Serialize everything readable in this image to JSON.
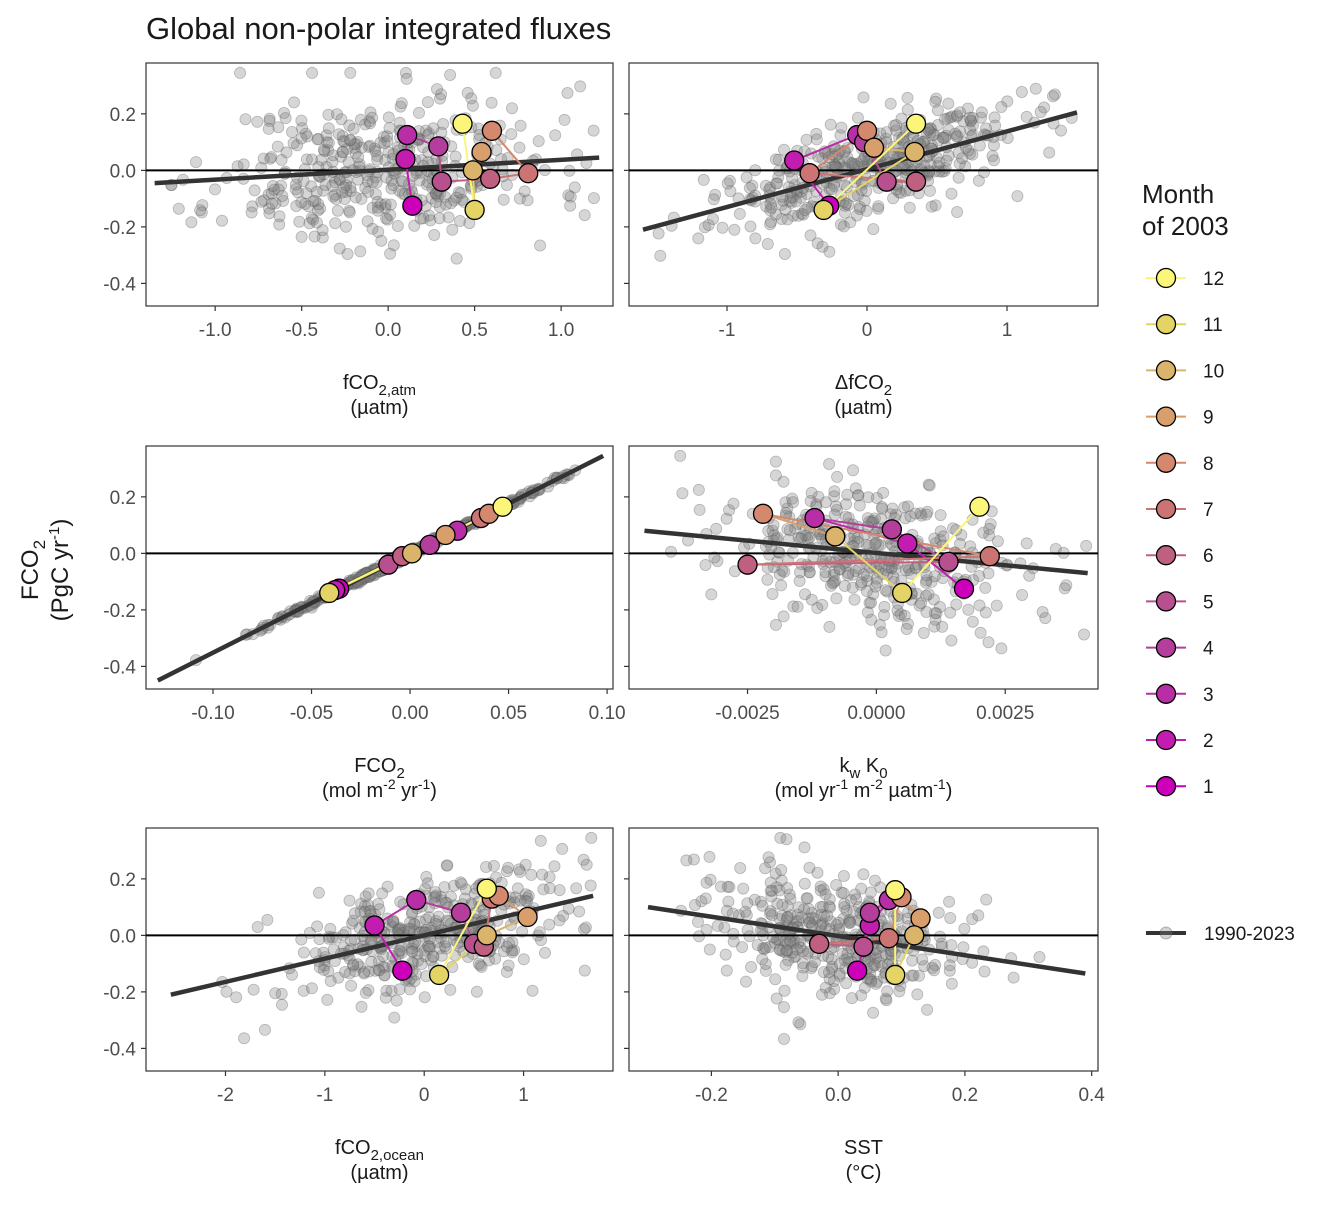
{
  "title": "Global non-polar integrated fluxes",
  "y_axis": {
    "label": "FCO",
    "label_sub": "2",
    "unit_pre": "(PgC yr",
    "unit_sup": "-1",
    "unit_post": ")"
  },
  "legend": {
    "title_line1": "Month",
    "title_line2": "of 2003",
    "months": [
      "12",
      "11",
      "10",
      "9",
      "8",
      "7",
      "6",
      "5",
      "4",
      "3",
      "2",
      "1"
    ],
    "trend_label": "1990-2023"
  },
  "colors": {
    "month_colors": [
      "#cc00bb",
      "#c21cb0",
      "#b82ea6",
      "#b33e9b",
      "#b84f8e",
      "#c06080",
      "#cc7474",
      "#d4886e",
      "#d89e6c",
      "#d9b46a",
      "#e4d466",
      "#fbf57a"
    ],
    "trend": "#333333",
    "points": "#808080"
  },
  "chart_data": [
    {
      "type": "scatter",
      "name": "fco2_atm",
      "xlabel": "fCO",
      "xlabel_sub": "2,atm",
      "xunit": "(µatm)",
      "xlim": [
        -1.4,
        1.3
      ],
      "xticks": [
        -1.0,
        -0.5,
        0.0,
        0.5,
        1.0
      ],
      "xtick_labels": [
        "-1.0",
        "-0.5",
        "0.0",
        "0.5",
        "1.0"
      ],
      "ylim": [
        -0.48,
        0.38
      ],
      "yticks": [
        -0.4,
        -0.2,
        0.0,
        0.2
      ],
      "ytick_labels": [
        "-0.4",
        "-0.2",
        "0.0",
        "0.2"
      ],
      "ref_line_y": 0,
      "trend": {
        "x": [
          -1.35,
          1.22
        ],
        "y": [
          -0.045,
          0.045
        ]
      },
      "months": [
        {
          "month": "1",
          "x": 0.14,
          "y": -0.125
        },
        {
          "month": "2",
          "x": 0.1,
          "y": 0.04
        },
        {
          "month": "3",
          "x": 0.11,
          "y": 0.125
        },
        {
          "month": "4",
          "x": 0.29,
          "y": 0.085
        },
        {
          "month": "5",
          "x": 0.31,
          "y": -0.04
        },
        {
          "month": "6",
          "x": 0.59,
          "y": -0.03
        },
        {
          "month": "7",
          "x": 0.81,
          "y": -0.01
        },
        {
          "month": "8",
          "x": 0.6,
          "y": 0.14
        },
        {
          "month": "9",
          "x": 0.54,
          "y": 0.065
        },
        {
          "month": "10",
          "x": 0.49,
          "y": 0.0
        },
        {
          "month": "11",
          "x": 0.5,
          "y": -0.14
        },
        {
          "month": "12",
          "x": 0.43,
          "y": 0.165
        }
      ],
      "scatter": {
        "n": 420,
        "seed": 11,
        "xmean": 0.0,
        "xsd": 0.48,
        "ymean": 0.0,
        "ysd": 0.13,
        "slope": 0.035,
        "xmin": -1.35,
        "xmax": 1.22
      }
    },
    {
      "type": "scatter",
      "name": "delta_fco2",
      "xlabel": "ΔfCO",
      "xlabel_sub": "2",
      "xunit": "(µatm)",
      "xlim": [
        -1.7,
        1.65
      ],
      "xticks": [
        -1,
        0,
        1
      ],
      "xtick_labels": [
        "-1",
        "0",
        "1"
      ],
      "ylim": [
        -0.48,
        0.38
      ],
      "yticks": [
        -0.4,
        -0.2,
        0.0,
        0.2
      ],
      "ytick_labels": [
        "-0.4",
        "-0.2",
        "0.0",
        "0.2"
      ],
      "ref_line_y": 0,
      "trend": {
        "x": [
          -1.6,
          1.5
        ],
        "y": [
          -0.21,
          0.205
        ]
      },
      "months": [
        {
          "month": "1",
          "x": -0.27,
          "y": -0.125
        },
        {
          "month": "2",
          "x": -0.52,
          "y": 0.035
        },
        {
          "month": "3",
          "x": -0.07,
          "y": 0.125
        },
        {
          "month": "4",
          "x": -0.02,
          "y": 0.1
        },
        {
          "month": "5",
          "x": 0.14,
          "y": -0.04
        },
        {
          "month": "6",
          "x": 0.35,
          "y": -0.04
        },
        {
          "month": "7",
          "x": -0.41,
          "y": -0.01
        },
        {
          "month": "8",
          "x": 0.0,
          "y": 0.14
        },
        {
          "month": "9",
          "x": 0.05,
          "y": 0.08
        },
        {
          "month": "10",
          "x": 0.34,
          "y": 0.065
        },
        {
          "month": "11",
          "x": -0.31,
          "y": -0.14
        },
        {
          "month": "12",
          "x": 0.35,
          "y": 0.165
        }
      ],
      "scatter": {
        "n": 420,
        "seed": 23,
        "xmean": 0.0,
        "xsd": 0.55,
        "ymean": 0.0,
        "ysd": 0.085,
        "slope": 0.135,
        "xmin": -1.6,
        "xmax": 1.5
      }
    },
    {
      "type": "scatter",
      "name": "fco2_flux",
      "xlabel": "FCO",
      "xlabel_sub": "2",
      "xunit_pre": "(mol m",
      "xunit_sup1": "-2",
      "xunit_mid": " yr",
      "xunit_sup2": "-1",
      "xunit_post": ")",
      "xlim": [
        -0.134,
        0.103
      ],
      "xticks": [
        -0.1,
        -0.05,
        0.0,
        0.05,
        0.1
      ],
      "xtick_labels": [
        "-0.10",
        "-0.05",
        "0.00",
        "0.05",
        "0.10"
      ],
      "ylim": [
        -0.48,
        0.38
      ],
      "yticks": [
        -0.4,
        -0.2,
        0.0,
        0.2
      ],
      "ytick_labels": [
        "-0.4",
        "-0.2",
        "0.0",
        "0.2"
      ],
      "ref_line_y": 0,
      "trend": {
        "x": [
          -0.128,
          0.098
        ],
        "y": [
          -0.45,
          0.345
        ]
      },
      "months": [
        {
          "month": "1",
          "x": -0.036,
          "y": -0.125
        },
        {
          "month": "2",
          "x": -0.038,
          "y": -0.13
        },
        {
          "month": "3",
          "x": 0.024,
          "y": 0.08
        },
        {
          "month": "4",
          "x": 0.01,
          "y": 0.03
        },
        {
          "month": "5",
          "x": -0.011,
          "y": -0.04
        },
        {
          "month": "6",
          "x": -0.004,
          "y": -0.01
        },
        {
          "month": "7",
          "x": 0.036,
          "y": 0.125
        },
        {
          "month": "8",
          "x": 0.04,
          "y": 0.14
        },
        {
          "month": "9",
          "x": 0.018,
          "y": 0.065
        },
        {
          "month": "10",
          "x": 0.001,
          "y": 0.0
        },
        {
          "month": "11",
          "x": -0.041,
          "y": -0.14
        },
        {
          "month": "12",
          "x": 0.047,
          "y": 0.165
        }
      ],
      "scatter": {
        "n": 420,
        "seed": 37,
        "xmean": 0.0,
        "xsd": 0.035,
        "ymean": 0.0,
        "ysd": 0.006,
        "slope": 3.5,
        "xmin": -0.128,
        "xmax": 0.098,
        "linear": true
      }
    },
    {
      "type": "scatter",
      "name": "kw_k0",
      "xlabel": "k",
      "xlabel_sub": "w",
      "xlabel2": " K",
      "xlabel2_sub": "0",
      "xunit_pre": "(mol yr",
      "xunit_sup1": "-1",
      "xunit_mid": " m",
      "xunit_sup2": "-2",
      "xunit_mid2": " µatm",
      "xunit_sup3": "-1",
      "xunit_post": ")",
      "xlim": [
        -0.0048,
        0.0043
      ],
      "xticks": [
        -0.0025,
        0.0,
        0.0025
      ],
      "xtick_labels": [
        "-0.0025",
        "0.0000",
        "0.0025"
      ],
      "ylim": [
        -0.48,
        0.38
      ],
      "yticks": [
        -0.4,
        -0.2,
        0.0,
        0.2
      ],
      "ytick_labels": [
        "-0.4",
        "-0.2",
        "0.0",
        "0.2"
      ],
      "ref_line_y": 0,
      "trend": {
        "x": [
          -0.0045,
          0.0041
        ],
        "y": [
          0.08,
          -0.07
        ]
      },
      "months": [
        {
          "month": "1",
          "x": 0.0017,
          "y": -0.125
        },
        {
          "month": "2",
          "x": 0.0006,
          "y": 0.035
        },
        {
          "month": "3",
          "x": -0.0012,
          "y": 0.125
        },
        {
          "month": "4",
          "x": 0.0003,
          "y": 0.085
        },
        {
          "month": "5",
          "x": 0.0014,
          "y": -0.03
        },
        {
          "month": "6",
          "x": -0.0025,
          "y": -0.04
        },
        {
          "month": "7",
          "x": 0.0022,
          "y": -0.01
        },
        {
          "month": "8",
          "x": -0.0022,
          "y": 0.14
        },
        {
          "month": "9",
          "x": -0.0008,
          "y": 0.06
        },
        {
          "month": "10",
          "x": -0.0008,
          "y": 0.06
        },
        {
          "month": "11",
          "x": 0.0005,
          "y": -0.14
        },
        {
          "month": "12",
          "x": 0.002,
          "y": 0.165
        }
      ],
      "scatter": {
        "n": 420,
        "seed": 53,
        "xmean": 0.0,
        "xsd": 0.0015,
        "ymean": 0.0,
        "ysd": 0.12,
        "slope": -17,
        "xmin": -0.0045,
        "xmax": 0.0041
      }
    },
    {
      "type": "scatter",
      "name": "fco2_ocean",
      "xlabel": "fCO",
      "xlabel_sub": "2,ocean",
      "xunit": "(µatm)",
      "xlim": [
        -2.8,
        1.9
      ],
      "xticks": [
        -2,
        -1,
        0,
        1
      ],
      "xtick_labels": [
        "-2",
        "-1",
        "0",
        "1"
      ],
      "ylim": [
        -0.48,
        0.38
      ],
      "yticks": [
        -0.4,
        -0.2,
        0.0,
        0.2
      ],
      "ytick_labels": [
        "-0.4",
        "-0.2",
        "0.0",
        "0.2"
      ],
      "ref_line_y": 0,
      "trend": {
        "x": [
          -2.55,
          1.7
        ],
        "y": [
          -0.21,
          0.14
        ]
      },
      "months": [
        {
          "month": "1",
          "x": -0.22,
          "y": -0.125
        },
        {
          "month": "2",
          "x": -0.5,
          "y": 0.035
        },
        {
          "month": "3",
          "x": -0.08,
          "y": 0.125
        },
        {
          "month": "4",
          "x": 0.37,
          "y": 0.08
        },
        {
          "month": "5",
          "x": 0.5,
          "y": -0.03
        },
        {
          "month": "6",
          "x": 0.6,
          "y": -0.04
        },
        {
          "month": "7",
          "x": 0.68,
          "y": 0.13
        },
        {
          "month": "8",
          "x": 0.75,
          "y": 0.14
        },
        {
          "month": "9",
          "x": 1.04,
          "y": 0.065
        },
        {
          "month": "10",
          "x": 0.63,
          "y": 0.0
        },
        {
          "month": "11",
          "x": 0.15,
          "y": -0.14
        },
        {
          "month": "12",
          "x": 0.63,
          "y": 0.165
        }
      ],
      "scatter": {
        "n": 420,
        "seed": 71,
        "xmean": 0.0,
        "xsd": 0.75,
        "ymean": 0.0,
        "ysd": 0.1,
        "slope": 0.08,
        "xmin": -2.55,
        "xmax": 1.7
      }
    },
    {
      "type": "scatter",
      "name": "sst",
      "xlabel": "SST",
      "xunit": "(°C)",
      "xlim": [
        -0.33,
        0.41
      ],
      "xticks": [
        -0.2,
        0.0,
        0.2,
        0.4
      ],
      "xtick_labels": [
        "-0.2",
        "0.0",
        "0.2",
        "0.4"
      ],
      "ylim": [
        -0.48,
        0.38
      ],
      "yticks": [
        -0.4,
        -0.2,
        0.0,
        0.2
      ],
      "ytick_labels": [
        "-0.4",
        "-0.2",
        "0.0",
        "0.2"
      ],
      "ref_line_y": 0,
      "trend": {
        "x": [
          -0.3,
          0.39
        ],
        "y": [
          0.1,
          -0.135
        ]
      },
      "months": [
        {
          "month": "1",
          "x": 0.03,
          "y": -0.125
        },
        {
          "month": "2",
          "x": 0.05,
          "y": 0.035
        },
        {
          "month": "3",
          "x": 0.08,
          "y": 0.125
        },
        {
          "month": "4",
          "x": 0.05,
          "y": 0.08
        },
        {
          "month": "5",
          "x": 0.04,
          "y": -0.04
        },
        {
          "month": "6",
          "x": -0.03,
          "y": -0.03
        },
        {
          "month": "7",
          "x": 0.08,
          "y": -0.01
        },
        {
          "month": "8",
          "x": 0.1,
          "y": 0.135
        },
        {
          "month": "9",
          "x": 0.13,
          "y": 0.06
        },
        {
          "month": "10",
          "x": 0.12,
          "y": 0.0
        },
        {
          "month": "11",
          "x": 0.09,
          "y": -0.14
        },
        {
          "month": "12",
          "x": 0.09,
          "y": 0.16
        }
      ],
      "scatter": {
        "n": 420,
        "seed": 89,
        "xmean": 0.0,
        "xsd": 0.1,
        "ymean": 0.0,
        "ysd": 0.11,
        "slope": -0.34,
        "xmin": -0.3,
        "xmax": 0.39
      }
    }
  ]
}
